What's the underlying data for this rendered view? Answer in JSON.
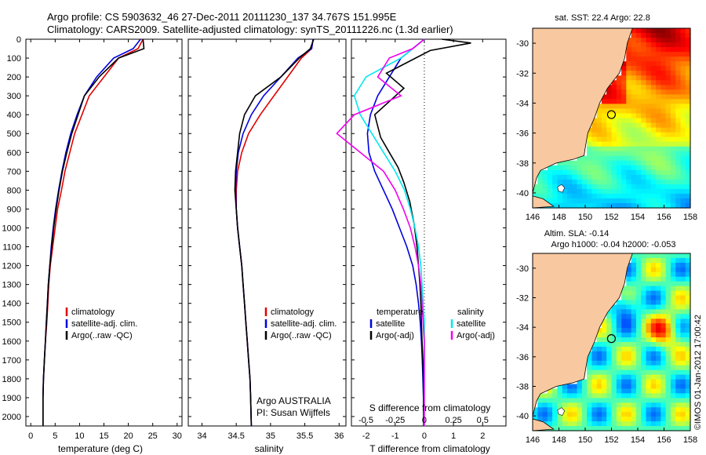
{
  "header": {
    "line1": "Argo profile: CS 5903632_46 27-Dec-2011 20111230_137 34.767S 151.995E",
    "line2": "Climatology: CARS2009. Satellite-adjusted climatology: synTS_20111226.nc (1.3d earlier)"
  },
  "colors": {
    "climatology": "#e00000",
    "satellite": "#0000e0",
    "argo": "#000000",
    "sal_satellite": "#00e8f0",
    "sal_argo": "#f000f0",
    "land": "#f8c8a0"
  },
  "chart_data": [
    {
      "type": "line",
      "name": "temperature-profile",
      "xlabel": "temperature (deg C)",
      "ylabel": "",
      "xlim": [
        -1,
        31
      ],
      "ylim": [
        2050,
        0
      ],
      "xticks": [
        "0",
        "5",
        "10",
        "15",
        "20",
        "25",
        "30"
      ],
      "yticks": [
        "0",
        "100",
        "200",
        "300",
        "400",
        "500",
        "600",
        "700",
        "800",
        "900",
        "1000",
        "1100",
        "1200",
        "1300",
        "1400",
        "1500",
        "1600",
        "1700",
        "1800",
        "1900",
        "2000"
      ],
      "legend": [
        "climatology",
        "satellite-adj. clim.",
        "Argo(..raw -QC)"
      ],
      "legend_position": "lower-right",
      "series": [
        {
          "name": "climatology",
          "color": "#e00000",
          "x": [
            23,
            22,
            18,
            15,
            12,
            10.5,
            9,
            8,
            7,
            6.3,
            5.5,
            5,
            4.5,
            4,
            3.7,
            3.5,
            3.3,
            3,
            2.8,
            2.6,
            2.5,
            2.5
          ],
          "y": [
            0,
            50,
            100,
            200,
            300,
            400,
            500,
            600,
            700,
            800,
            900,
            1000,
            1100,
            1200,
            1300,
            1400,
            1500,
            1600,
            1700,
            1800,
            1900,
            2050
          ]
        },
        {
          "name": "satellite-adj. clim.",
          "color": "#0000e0",
          "x": [
            22.5,
            21,
            17,
            13.5,
            11,
            9.5,
            8.2,
            7.2,
            6.4,
            5.7,
            5.1,
            4.6,
            4.2,
            3.9,
            3.6,
            3.4,
            3.2,
            3,
            2.8,
            2.6,
            2.5,
            2.5
          ],
          "y": [
            0,
            50,
            100,
            200,
            300,
            400,
            500,
            600,
            700,
            800,
            900,
            1000,
            1100,
            1200,
            1300,
            1400,
            1500,
            1600,
            1700,
            1800,
            1900,
            2050
          ]
        },
        {
          "name": "Argo(..raw -QC)",
          "color": "#000000",
          "x": [
            23,
            23.2,
            18,
            14,
            11,
            9.7,
            8.4,
            7.4,
            6.5,
            5.8,
            5.2,
            4.7,
            4.3,
            3.9,
            3.6,
            3.4,
            3.2,
            3,
            2.8,
            2.6,
            2.5,
            2.5
          ],
          "y": [
            0,
            50,
            100,
            200,
            300,
            400,
            500,
            600,
            700,
            800,
            900,
            1000,
            1100,
            1200,
            1300,
            1400,
            1500,
            1600,
            1700,
            1800,
            1900,
            2050
          ]
        }
      ]
    },
    {
      "type": "line",
      "name": "salinity-profile",
      "xlabel": "salinity",
      "xlim": [
        33.8,
        36.1
      ],
      "ylim": [
        2050,
        0
      ],
      "xticks": [
        "34",
        "34.5",
        "35",
        "35.5",
        "36"
      ],
      "legend": [
        "climatology",
        "satellite-adj. clim.",
        "Argo(..raw -QC)"
      ],
      "legend_position": "lower-right",
      "annotation": [
        "Argo AUSTRALIA",
        "PI: Susan Wijffels"
      ],
      "series": [
        {
          "name": "climatology",
          "color": "#e00000",
          "x": [
            35.62,
            35.6,
            35.45,
            35.25,
            35.05,
            34.85,
            34.68,
            34.58,
            34.52,
            34.5,
            34.5,
            34.52,
            34.55,
            34.58,
            34.6,
            34.62,
            34.64,
            34.66,
            34.68,
            34.7,
            34.71,
            34.72
          ],
          "y": [
            0,
            50,
            100,
            200,
            300,
            400,
            500,
            600,
            700,
            800,
            900,
            1000,
            1100,
            1200,
            1300,
            1400,
            1500,
            1600,
            1700,
            1800,
            1900,
            2050
          ]
        },
        {
          "name": "satellite-adj. clim.",
          "color": "#0000e0",
          "x": [
            35.62,
            35.6,
            35.4,
            35.15,
            34.9,
            34.72,
            34.6,
            34.53,
            34.5,
            34.49,
            34.5,
            34.52,
            34.55,
            34.58,
            34.6,
            34.62,
            34.64,
            34.66,
            34.68,
            34.7,
            34.71,
            34.72
          ],
          "y": [
            0,
            50,
            100,
            200,
            300,
            400,
            500,
            600,
            700,
            800,
            900,
            1000,
            1100,
            1200,
            1300,
            1400,
            1500,
            1600,
            1700,
            1800,
            1900,
            2050
          ]
        },
        {
          "name": "Argo(..raw -QC)",
          "color": "#000000",
          "x": [
            35.63,
            35.58,
            35.42,
            35.15,
            34.78,
            34.62,
            34.55,
            34.52,
            34.49,
            34.48,
            34.5,
            34.52,
            34.55,
            34.58,
            34.6,
            34.62,
            34.64,
            34.66,
            34.68,
            34.7,
            34.71,
            34.72
          ],
          "y": [
            0,
            50,
            100,
            200,
            300,
            400,
            500,
            600,
            700,
            800,
            900,
            1000,
            1100,
            1200,
            1300,
            1400,
            1500,
            1600,
            1700,
            1800,
            1900,
            2050
          ]
        }
      ]
    },
    {
      "type": "line",
      "name": "difference-profile",
      "xlabel": "T difference from climatology",
      "xlabel_top": "S difference from climatology",
      "xlim": [
        -2.5,
        2.8
      ],
      "ylim": [
        2050,
        0
      ],
      "xticks": [
        "-2",
        "-1",
        "0",
        "1",
        "2"
      ],
      "xticks_s": [
        "-0.5",
        "-0.25",
        "0",
        "0.25",
        "0.5"
      ],
      "legend_temperature": {
        "title": "temperature",
        "items": [
          "satellite",
          "Argo(-adj)"
        ]
      },
      "legend_salinity": {
        "title": "salinity",
        "items": [
          "satellite",
          "Argo(-adj)"
        ]
      },
      "legend_position": "lower-center",
      "series": [
        {
          "name": "temperature satellite",
          "color": "#0000e0",
          "x": [
            0,
            -0.4,
            -0.8,
            -1.2,
            -1.6,
            -1.85,
            -1.95,
            -1.9,
            -1.7,
            -1.4,
            -1.1,
            -0.85,
            -0.6,
            -0.4,
            -0.28,
            -0.2,
            -0.14,
            -0.1,
            -0.07,
            -0.05,
            -0.03,
            -0.02
          ],
          "y": [
            0,
            50,
            100,
            200,
            300,
            400,
            500,
            600,
            700,
            800,
            900,
            1000,
            1100,
            1200,
            1300,
            1400,
            1500,
            1600,
            1700,
            1800,
            1900,
            2050
          ]
        },
        {
          "name": "temperature Argo(-adj)",
          "color": "#000000",
          "x": [
            0.6,
            1.6,
            0.2,
            -1.3,
            -0.7,
            -1.7,
            -1.5,
            -1.2,
            -0.9,
            -0.7,
            -0.5,
            -0.35,
            -0.25,
            -0.2,
            -0.15,
            -0.12,
            -0.1,
            -0.08,
            -0.05,
            -0.03,
            -0.02,
            -0.02
          ],
          "y": [
            0,
            20,
            60,
            180,
            260,
            400,
            520,
            600,
            680,
            760,
            860,
            980,
            1100,
            1200,
            1300,
            1400,
            1500,
            1600,
            1700,
            1800,
            1900,
            2050
          ]
        },
        {
          "name": "salinity satellite",
          "color": "#00e8f0",
          "x": [
            0,
            -0.1,
            -0.2,
            -0.5,
            -0.6,
            -0.55,
            -0.45,
            -0.35,
            -0.25,
            -0.17,
            -0.12,
            -0.08,
            -0.05,
            -0.03,
            -0.02,
            -0.01,
            0,
            0,
            0,
            0,
            0,
            0
          ],
          "y": [
            0,
            50,
            100,
            200,
            300,
            400,
            500,
            600,
            700,
            800,
            900,
            1000,
            1100,
            1200,
            1300,
            1400,
            1500,
            1600,
            1700,
            1800,
            1900,
            2050
          ]
        },
        {
          "name": "salinity Argo(-adj)",
          "color": "#f000f0",
          "x": [
            0,
            -0.1,
            -0.3,
            -0.4,
            -0.2,
            -0.6,
            -0.75,
            -0.55,
            -0.35,
            -0.25,
            -0.18,
            -0.12,
            -0.08,
            -0.05,
            -0.03,
            -0.02,
            -0.01,
            0,
            0,
            0,
            0,
            0
          ],
          "y": [
            0,
            50,
            100,
            200,
            300,
            400,
            500,
            600,
            700,
            800,
            900,
            1000,
            1100,
            1200,
            1300,
            1400,
            1500,
            1600,
            1700,
            1800,
            1900,
            2050
          ]
        }
      ]
    },
    {
      "type": "heatmap",
      "name": "sst-map",
      "title": "sat. SST: 22.4  Argo: 22.8",
      "xlim": [
        146,
        158
      ],
      "ylim": [
        -41,
        -29
      ],
      "xticks": [
        "146",
        "148",
        "150",
        "152",
        "154",
        "156",
        "158"
      ],
      "yticks": [
        "-30",
        "-32",
        "-34",
        "-36",
        "-38",
        "-40"
      ],
      "argo_position": {
        "lon": 151.995,
        "lat": -34.767
      }
    },
    {
      "type": "heatmap",
      "name": "sla-map",
      "title_line1": "Altim. SLA: -0.14",
      "title_line2": "Argo h1000: -0.04 h2000: -0.053",
      "xlim": [
        146,
        158
      ],
      "ylim": [
        -41,
        -29
      ],
      "xticks": [
        "146",
        "148",
        "150",
        "152",
        "154",
        "156",
        "158"
      ],
      "yticks": [
        "-30",
        "-32",
        "-34",
        "-36",
        "-38",
        "-40"
      ],
      "argo_position": {
        "lon": 151.995,
        "lat": -34.767
      }
    }
  ],
  "credit": "©IMOS 01-Jan-2012 17:00:42"
}
